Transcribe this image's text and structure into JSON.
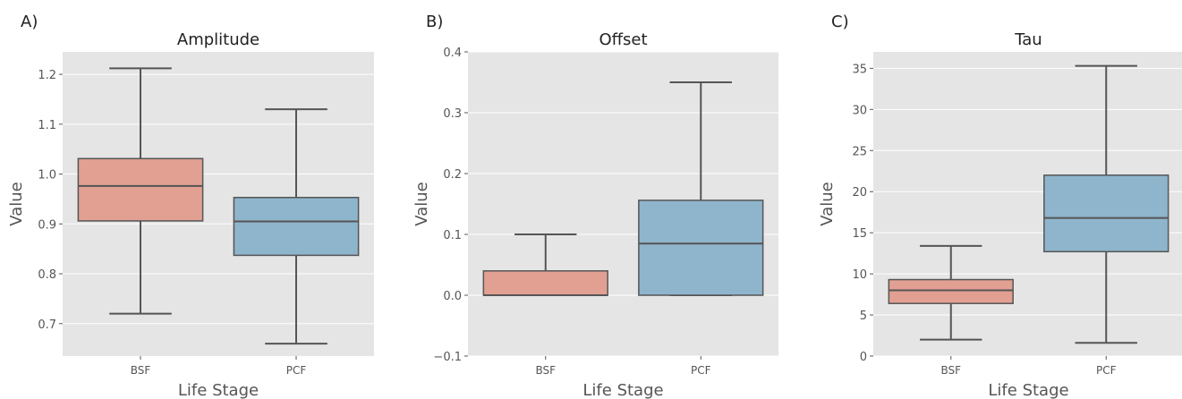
{
  "chart_data": [
    {
      "type": "box",
      "panel_label": "A)",
      "title": "Amplitude",
      "xlabel": "Life Stage",
      "ylabel": "Value",
      "categories": [
        "BSF",
        "PCF"
      ],
      "ylim": [
        0.635,
        1.245
      ],
      "yticks": [
        0.7,
        0.8,
        0.9,
        1.0,
        1.1,
        1.2
      ],
      "ytick_labels": [
        "0.7",
        "0.8",
        "0.9",
        "1.0",
        "1.1",
        "1.2"
      ],
      "boxes": [
        {
          "category": "BSF",
          "whisker_low": 0.72,
          "q1": 0.906,
          "median": 0.976,
          "q3": 1.031,
          "whisker_high": 1.212,
          "color": "#e2a093"
        },
        {
          "category": "PCF",
          "whisker_low": 0.66,
          "q1": 0.837,
          "median": 0.905,
          "q3": 0.953,
          "whisker_high": 1.13,
          "color": "#8fb5cc"
        }
      ],
      "grid": true
    },
    {
      "type": "box",
      "panel_label": "B)",
      "title": "Offset",
      "xlabel": "Life Stage",
      "ylabel": "Value",
      "categories": [
        "BSF",
        "PCF"
      ],
      "ylim": [
        -0.1,
        0.4
      ],
      "yticks": [
        -0.1,
        0.0,
        0.1,
        0.2,
        0.3,
        0.4
      ],
      "ytick_labels": [
        "−0.1",
        "0.0",
        "0.1",
        "0.2",
        "0.3",
        "0.4"
      ],
      "boxes": [
        {
          "category": "BSF",
          "whisker_low": 0.0,
          "q1": 0.0,
          "median": 0.0,
          "q3": 0.04,
          "whisker_high": 0.1,
          "color": "#e2a093"
        },
        {
          "category": "PCF",
          "whisker_low": 0.0,
          "q1": 0.0,
          "median": 0.085,
          "q3": 0.156,
          "whisker_high": 0.35,
          "color": "#8fb5cc"
        }
      ],
      "grid": true
    },
    {
      "type": "box",
      "panel_label": "C)",
      "title": "Tau",
      "xlabel": "Life Stage",
      "ylabel": "Value",
      "categories": [
        "BSF",
        "PCF"
      ],
      "ylim": [
        0,
        37
      ],
      "yticks": [
        0,
        5,
        10,
        15,
        20,
        25,
        30,
        35
      ],
      "ytick_labels": [
        "0",
        "5",
        "10",
        "15",
        "20",
        "25",
        "30",
        "35"
      ],
      "boxes": [
        {
          "category": "BSF",
          "whisker_low": 2.0,
          "q1": 6.4,
          "median": 8.0,
          "q3": 9.3,
          "whisker_high": 13.4,
          "color": "#e2a093"
        },
        {
          "category": "PCF",
          "whisker_low": 1.6,
          "q1": 12.7,
          "median": 16.8,
          "q3": 22.0,
          "whisker_high": 35.3,
          "color": "#8fb5cc"
        }
      ],
      "grid": true
    }
  ],
  "style": {
    "plot_background": "#e5e5e5",
    "grid_color": "#ffffff",
    "box_line_color": "#555555",
    "tick_text_color": "#555555",
    "label_color": "#555555"
  }
}
